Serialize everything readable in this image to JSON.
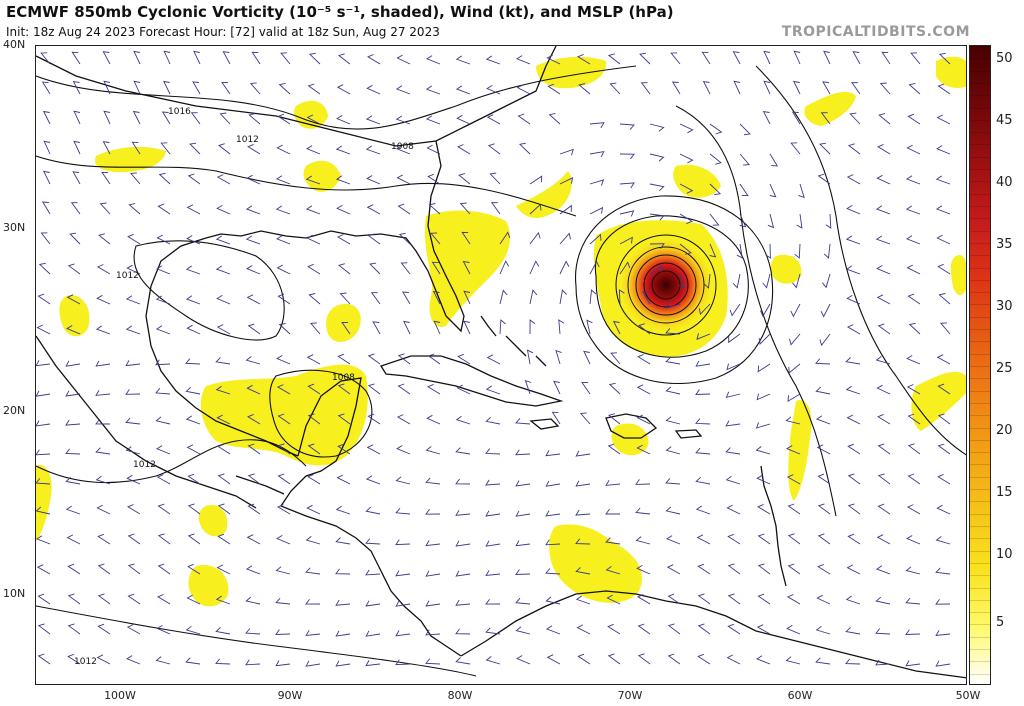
{
  "header": {
    "title": "ECMWF 850mb Cyclonic Vorticity (10⁻⁵ s⁻¹, shaded), Wind (kt), and MSLP (hPa)",
    "subtitle": "Init: 18z Aug 24 2023   Forecast Hour: [72]   valid at 18z Sun, Aug 27 2023",
    "credit": "TROPICALTIDBITS.COM"
  },
  "map": {
    "lat_range": [
      5,
      40
    ],
    "lon_range": [
      -105,
      -50
    ],
    "lat_ticks": [
      "40N",
      "30N",
      "20N",
      "10N"
    ],
    "lon_ticks": [
      "100W",
      "90W",
      "80W",
      "70W",
      "60W",
      "50W"
    ],
    "isobar_labels": [
      "1016",
      "1012",
      "1008",
      "1012",
      "1008",
      "1012",
      "1012"
    ],
    "colors": {
      "land": "#111111",
      "isobar": "#111111",
      "wind_barb": "#3a3a8a",
      "vorticity_low": "#f7ef1e",
      "vorticity_mid": "#f6a21a",
      "vorticity_high": "#d7191c",
      "vorticity_max": "#5a0000"
    }
  },
  "colorbar": {
    "min": 0,
    "max": 52,
    "tick_labels": [
      "50",
      "45",
      "40",
      "35",
      "30",
      "25",
      "20",
      "15",
      "10",
      "5"
    ],
    "colors": [
      "#ffffff",
      "#fff96a",
      "#f8e21d",
      "#f5c318",
      "#f2a115",
      "#ee7f15",
      "#e65b14",
      "#dd3317",
      "#c51b1b",
      "#9c1010",
      "#6e0707",
      "#4a0000"
    ]
  }
}
